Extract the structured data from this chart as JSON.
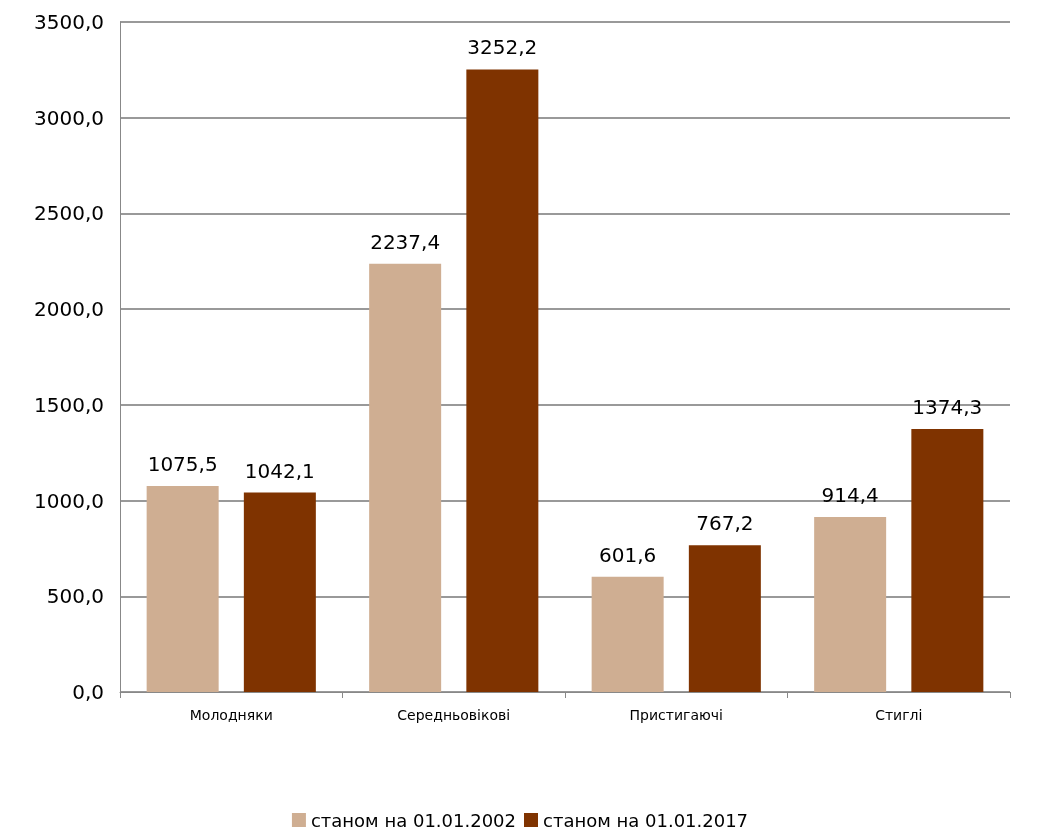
{
  "chart_data": {
    "type": "bar",
    "categories": [
      "Молодняки",
      "Середньовікові",
      "Пристигаючі",
      "Стиглі"
    ],
    "series": [
      {
        "name": "станом на 01.01.2002",
        "color": "#cfae92",
        "values": [
          1075.5,
          2237.4,
          601.6,
          914.4
        ],
        "value_labels": [
          "1075,5",
          "2237,4",
          "601,6",
          "914,4"
        ]
      },
      {
        "name": "станом на 01.01.2017",
        "color": "#7f3300",
        "values": [
          1042.1,
          3252.2,
          767.2,
          1374.3
        ],
        "value_labels": [
          "1042,1",
          "3252,2",
          "767,2",
          "1374,3"
        ]
      }
    ],
    "ylim": [
      0,
      3500
    ],
    "yticks": [
      {
        "value": 0,
        "label": "0,0"
      },
      {
        "value": 500,
        "label": "500,0"
      },
      {
        "value": 1000,
        "label": "1000,0"
      },
      {
        "value": 1500,
        "label": "1500,0"
      },
      {
        "value": 2000,
        "label": "2000,0"
      },
      {
        "value": 2500,
        "label": "2500,0"
      },
      {
        "value": 3000,
        "label": "3000,0"
      },
      {
        "value": 3500,
        "label": "3500,0"
      }
    ],
    "grid": "y",
    "legend": "bottom"
  }
}
